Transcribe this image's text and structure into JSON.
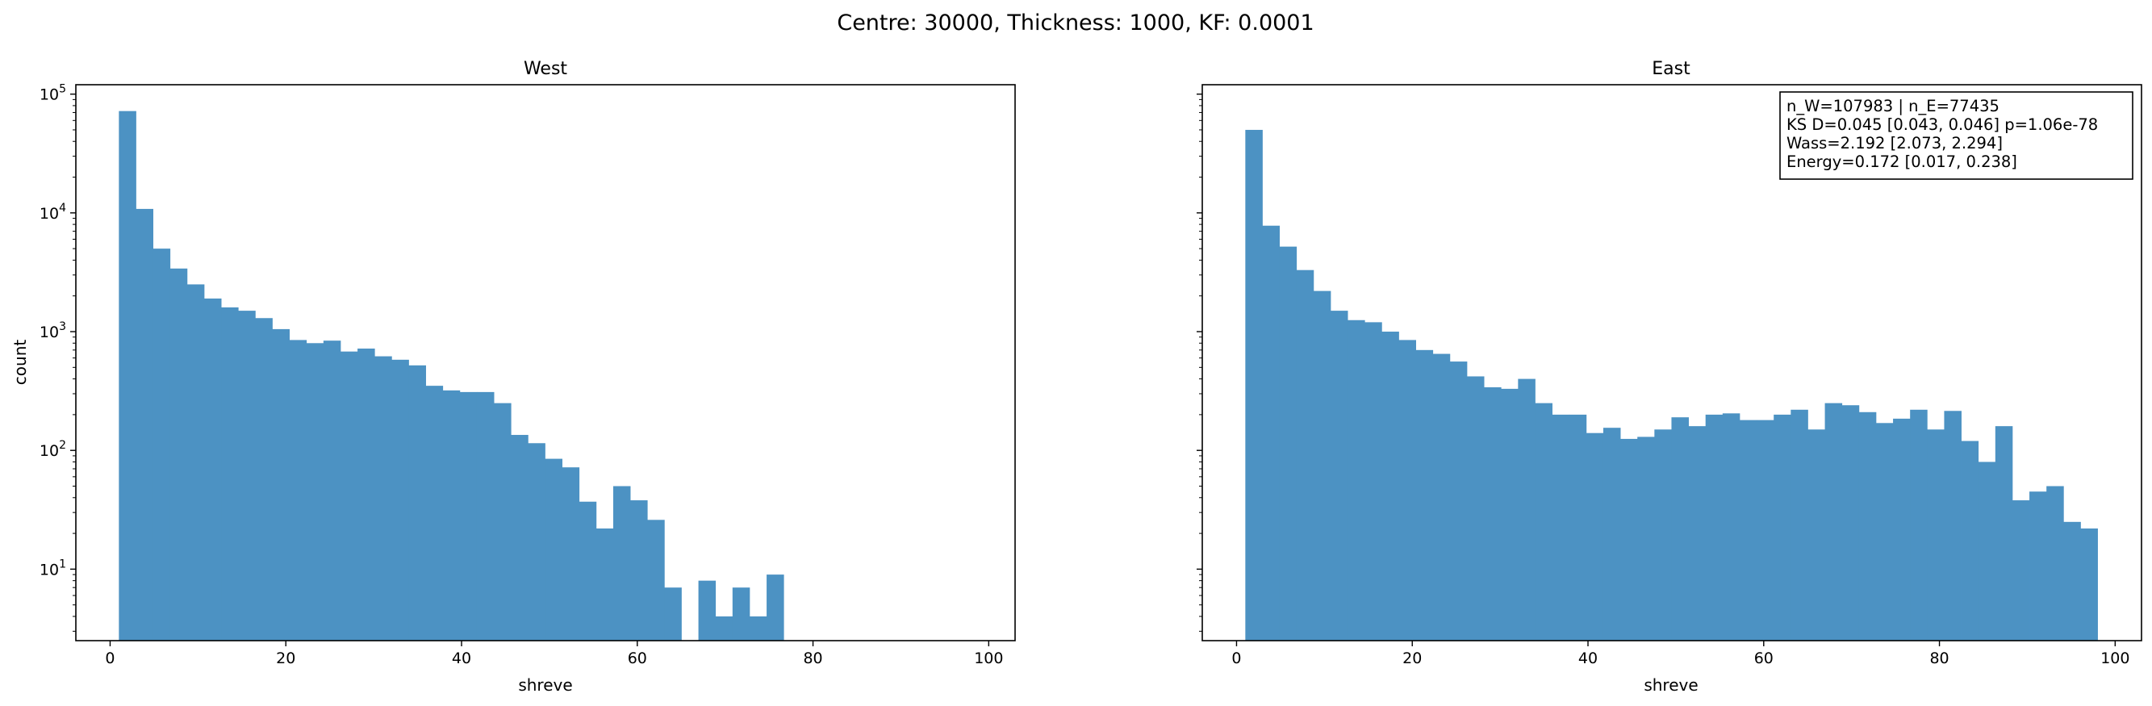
{
  "figure": {
    "suptitle": "Centre: 30000, Thickness: 1000, KF: 0.0001"
  },
  "chart_data": [
    {
      "type": "bar",
      "title": "West",
      "xlabel": "shreve",
      "ylabel": "count",
      "xlim": [
        -3.9,
        103
      ],
      "ylim": [
        2.5,
        120000
      ],
      "yscale": "log",
      "xticks": [
        "0",
        "20",
        "40",
        "60",
        "80",
        "100"
      ],
      "yticks": [
        "10^1",
        "10^2",
        "10^3",
        "10^4",
        "10^5"
      ],
      "bin_edges": [
        1,
        2.94,
        4.88,
        6.82,
        8.76,
        10.7,
        12.64,
        14.58,
        16.52,
        18.46,
        20.4,
        22.34,
        24.28,
        26.22,
        28.16,
        30.1,
        32.04,
        33.98,
        35.92,
        37.86,
        39.8,
        41.74,
        43.68,
        45.62,
        47.56,
        49.5,
        51.44,
        53.38,
        55.32,
        57.26,
        59.2,
        61.14,
        63.08,
        65.02,
        66.96,
        68.9,
        70.84,
        72.78,
        74.72,
        76.66,
        78.6,
        80.54,
        82.48,
        84.42,
        86.36,
        88.3,
        90.24,
        92.18,
        94.12,
        96.06,
        98
      ],
      "counts": [
        72000,
        10800,
        5000,
        3400,
        2500,
        1900,
        1600,
        1500,
        1300,
        1050,
        850,
        800,
        840,
        680,
        720,
        620,
        580,
        520,
        350,
        320,
        310,
        310,
        250,
        135,
        115,
        85,
        72,
        37,
        22,
        50,
        38,
        26,
        7,
        0,
        8,
        4,
        7,
        4,
        9,
        0,
        0,
        0,
        0,
        0,
        0,
        0,
        0,
        0,
        0,
        0
      ],
      "color": "#4c92c3"
    },
    {
      "type": "bar",
      "title": "East",
      "xlabel": "shreve",
      "ylabel": "",
      "xlim": [
        -3.9,
        103
      ],
      "ylim": [
        2.5,
        120000
      ],
      "yscale": "log",
      "xticks": [
        "0",
        "20",
        "40",
        "60",
        "80",
        "100"
      ],
      "bin_edges": [
        1,
        2.94,
        4.88,
        6.82,
        8.76,
        10.7,
        12.64,
        14.58,
        16.52,
        18.46,
        20.4,
        22.34,
        24.28,
        26.22,
        28.16,
        30.1,
        32.04,
        33.98,
        35.92,
        37.86,
        39.8,
        41.74,
        43.68,
        45.62,
        47.56,
        49.5,
        51.44,
        53.38,
        55.32,
        57.26,
        59.2,
        61.14,
        63.08,
        65.02,
        66.96,
        68.9,
        70.84,
        72.78,
        74.72,
        76.66,
        78.6,
        80.54,
        82.48,
        84.42,
        86.36,
        88.3,
        90.24,
        92.18,
        94.12,
        96.06,
        98
      ],
      "counts": [
        50000,
        7800,
        5200,
        3300,
        2200,
        1500,
        1250,
        1200,
        1000,
        850,
        700,
        650,
        560,
        420,
        340,
        330,
        400,
        250,
        200,
        200,
        140,
        155,
        125,
        130,
        150,
        190,
        160,
        200,
        205,
        180,
        180,
        200,
        220,
        150,
        250,
        240,
        210,
        170,
        185,
        220,
        150,
        215,
        120,
        80,
        160,
        38,
        45,
        50,
        25,
        22
      ],
      "color": "#4c92c3",
      "annotation": [
        "n_W=107983 | n_E=77435",
        "KS D=0.045 [0.043, 0.046]  p=1.06e-78",
        "Wass=2.192 [2.073, 2.294]",
        "Energy=0.172 [0.017, 0.238]"
      ]
    }
  ]
}
